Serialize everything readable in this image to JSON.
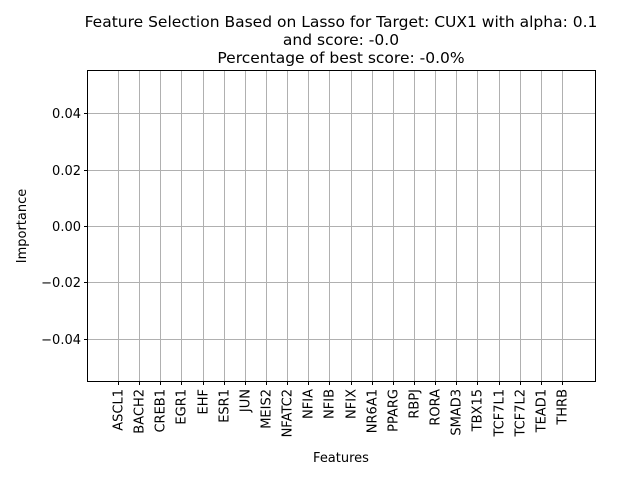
{
  "chart_data": {
    "type": "bar",
    "title_lines": [
      "Feature Selection Based on Lasso for Target: CUX1 with alpha: 0.1",
      "and score: -0.0",
      "Percentage of best score: -0.0%"
    ],
    "xlabel": "Features",
    "ylabel": "Importance",
    "categories": [
      "ASCL1",
      "BACH2",
      "CREB1",
      "EGR1",
      "EHF",
      "ESR1",
      "JUN",
      "MEIS2",
      "NFATC2",
      "NFIA",
      "NFIB",
      "NFIX",
      "NR6A1",
      "PPARG",
      "RBPJ",
      "RORA",
      "SMAD3",
      "TBX15",
      "TCF7L1",
      "TCF7L2",
      "TEAD1",
      "THRB"
    ],
    "values": [
      0,
      0,
      0,
      0,
      0,
      0,
      0,
      0,
      0,
      0,
      0,
      0,
      0,
      0,
      0,
      0,
      0,
      0,
      0,
      0,
      0,
      0
    ],
    "ylim": [
      -0.055,
      0.055
    ],
    "yticks": [
      -0.04,
      -0.02,
      0.0,
      0.02,
      0.04
    ],
    "ytick_labels": [
      "−0.04",
      "−0.02",
      "0.00",
      "0.02",
      "0.04"
    ],
    "grid": true,
    "bar_color": "#1f77b4"
  }
}
